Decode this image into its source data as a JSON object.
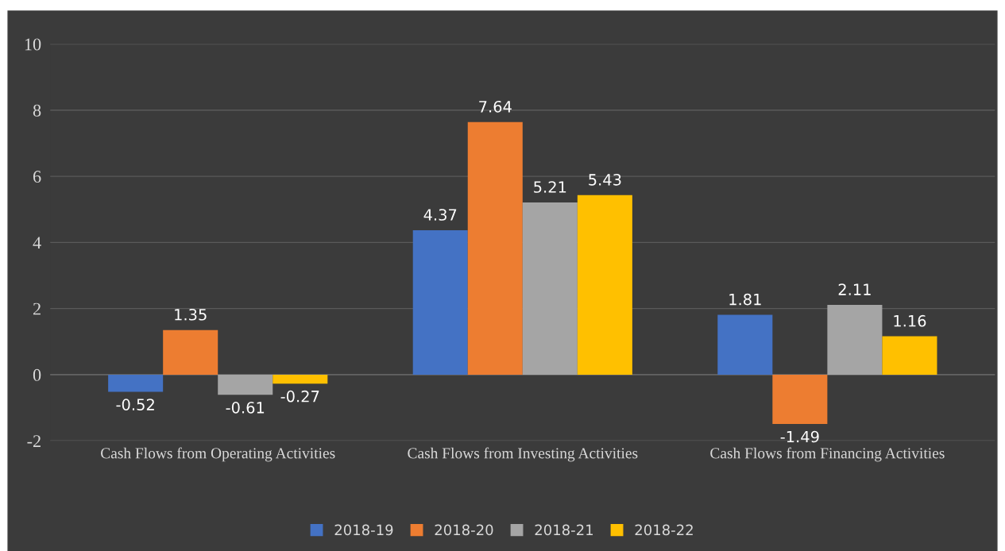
{
  "chart_data": {
    "type": "bar",
    "categories": [
      "Cash Flows from Operating Activities",
      "Cash Flows from Investing Activities",
      "Cash Flows from Financing Activities"
    ],
    "series": [
      {
        "name": "2018-19",
        "color": "#4472c4",
        "values": [
          -0.52,
          4.37,
          1.81
        ]
      },
      {
        "name": "2018-20",
        "color": "#ed7d31",
        "values": [
          1.35,
          7.64,
          -1.49
        ]
      },
      {
        "name": "2018-21",
        "color": "#a5a5a5",
        "values": [
          -0.61,
          5.21,
          2.11
        ]
      },
      {
        "name": "2018-22",
        "color": "#ffc000",
        "values": [
          -0.27,
          5.43,
          1.16
        ]
      }
    ],
    "ylim": [
      -2,
      10
    ],
    "yticks": [
      -2,
      0,
      2,
      4,
      6,
      8,
      10
    ],
    "grid": "y",
    "legend": "bottom",
    "data_labels": true
  }
}
